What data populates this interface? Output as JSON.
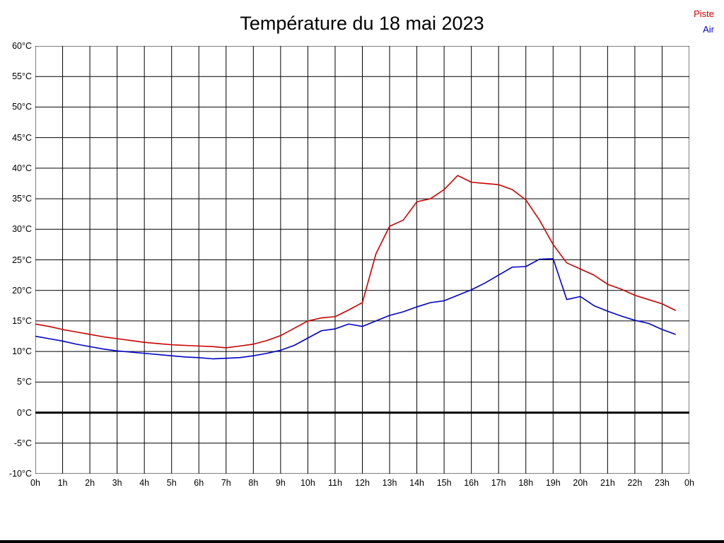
{
  "title": "Température du 18 mai 2023",
  "legend": [
    {
      "label": "Piste",
      "color": "#cc0000"
    },
    {
      "label": "Air",
      "color": "#0000cc"
    }
  ],
  "chart_data": {
    "type": "line",
    "title": "Température du 18 mai 2023",
    "xlim": [
      0,
      24
    ],
    "ylim": [
      -10,
      60
    ],
    "grid": true,
    "legend_position": "top-right",
    "zero_line_bold": true,
    "y_ticks": [
      60,
      55,
      50,
      45,
      40,
      35,
      30,
      25,
      20,
      15,
      10,
      5,
      0,
      -5,
      -10
    ],
    "y_tick_labels": [
      "60°C",
      "55°C",
      "50°C",
      "45°C",
      "40°C",
      "35°C",
      "30°C",
      "25°C",
      "20°C",
      "15°C",
      "10°C",
      "5°C",
      "0°C",
      "-5°C",
      "-10°C"
    ],
    "x_grid": [
      0,
      1,
      2,
      3,
      4,
      5,
      6,
      7,
      8,
      9,
      10,
      11,
      12,
      13,
      14,
      15,
      16,
      17,
      18,
      19,
      20,
      21,
      22,
      23,
      24
    ],
    "x_tick_labels": [
      "0h",
      "1h",
      "2h",
      "3h",
      "4h",
      "5h",
      "6h",
      "7h",
      "8h",
      "9h",
      "10h",
      "11h",
      "12h",
      "13h",
      "14h",
      "15h",
      "16h",
      "17h",
      "18h",
      "19h",
      "20h",
      "21h",
      "22h",
      "23h",
      "0h"
    ],
    "x": [
      0,
      0.5,
      1,
      1.5,
      2,
      2.5,
      3,
      3.5,
      4,
      4.5,
      5,
      5.5,
      6,
      6.5,
      7,
      7.5,
      8,
      8.5,
      9,
      9.5,
      10,
      10.5,
      11,
      11.5,
      12,
      12.5,
      13,
      13.5,
      14,
      14.5,
      15,
      15.5,
      16,
      16.5,
      17,
      17.5,
      18,
      18.5,
      19,
      19.5,
      20,
      20.5,
      21,
      21.5,
      22,
      22.5,
      23,
      23.5
    ],
    "series": [
      {
        "name": "Piste",
        "color": "#cc0000",
        "values": [
          14.5,
          14.1,
          13.6,
          13.2,
          12.8,
          12.4,
          12.1,
          11.8,
          11.5,
          11.3,
          11.1,
          11.0,
          10.9,
          10.8,
          10.6,
          10.9,
          11.2,
          11.8,
          12.6,
          13.8,
          15.0,
          15.5,
          15.7,
          16.8,
          18.0,
          26.0,
          30.5,
          31.5,
          34.5,
          35.0,
          36.5,
          38.8,
          37.7,
          37.5,
          37.3,
          36.5,
          34.8,
          31.5,
          27.5,
          24.5,
          23.5,
          22.5,
          21.0,
          20.2,
          19.2,
          18.5,
          17.8,
          16.7
        ]
      },
      {
        "name": "Air",
        "color": "#0000cc",
        "values": [
          12.5,
          12.1,
          11.7,
          11.2,
          10.8,
          10.4,
          10.1,
          9.9,
          9.7,
          9.5,
          9.3,
          9.1,
          9.0,
          8.8,
          8.9,
          9.0,
          9.3,
          9.7,
          10.2,
          11.0,
          12.2,
          13.4,
          13.7,
          14.5,
          14.1,
          15.0,
          15.9,
          16.5,
          17.3,
          18.0,
          18.3,
          19.2,
          20.1,
          21.2,
          22.5,
          23.8,
          23.9,
          25.1,
          25.2,
          18.5,
          19.0,
          17.5,
          16.6,
          15.8,
          15.1,
          14.6,
          13.6,
          12.8
        ]
      }
    ]
  }
}
